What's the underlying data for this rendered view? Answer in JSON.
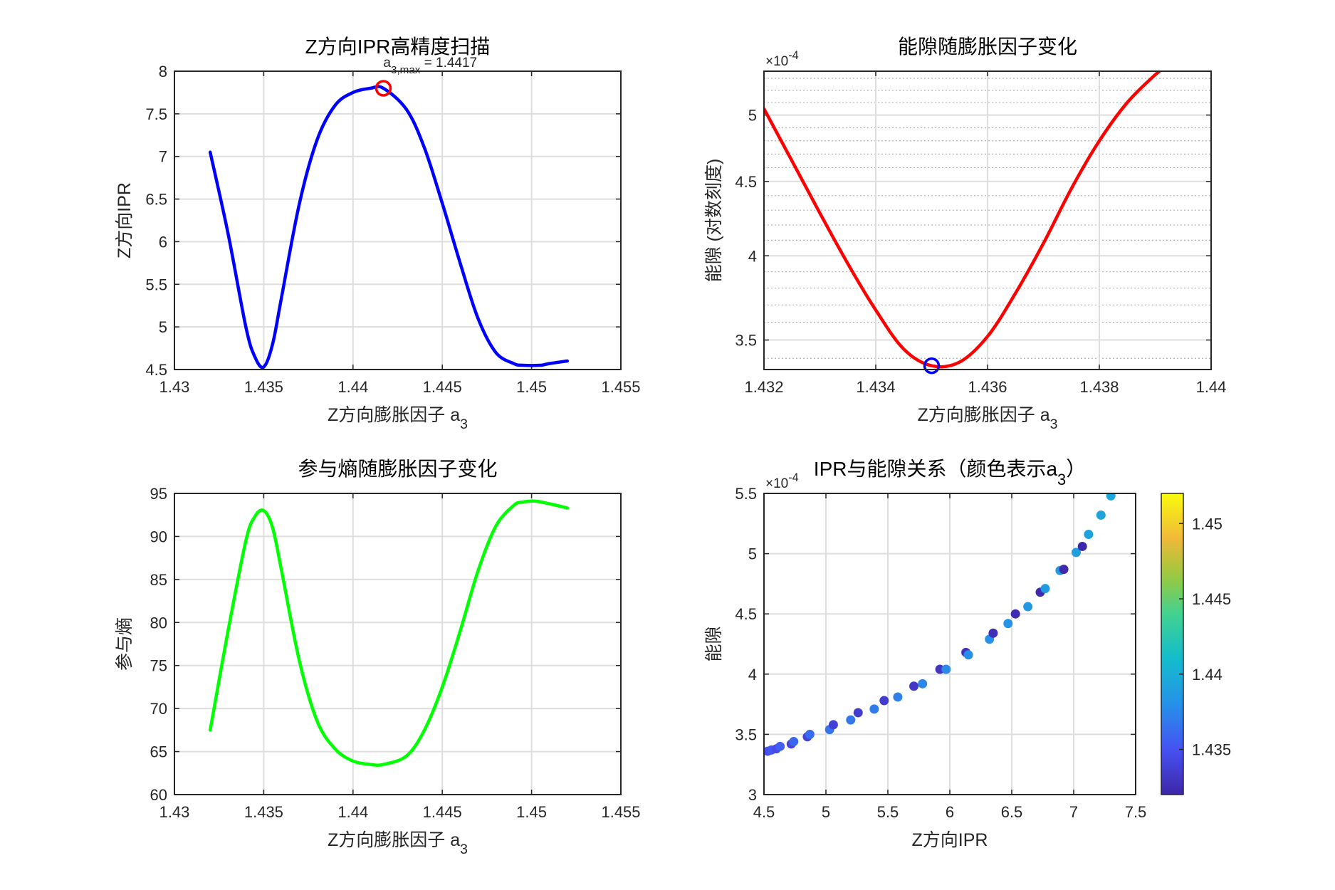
{
  "chart_data": [
    {
      "type": "line",
      "title": "Z方向IPR高精度扫描",
      "annotation": "a3,max = 1.4417",
      "xlabel": "Z方向膨胀因子 a3",
      "ylabel": "Z方向IPR",
      "xlim": [
        1.43,
        1.455
      ],
      "ylim": [
        4.5,
        8
      ],
      "xticks": [
        "1.43",
        "1.435",
        "1.44",
        "1.445",
        "1.45",
        "1.455"
      ],
      "yticks": [
        "4.5",
        "5",
        "5.5",
        "6",
        "6.5",
        "7",
        "7.5",
        "8"
      ],
      "grid": true,
      "series": [
        {
          "color": "#0000ff",
          "x": [
            1.432,
            1.433,
            1.434,
            1.4345,
            1.435,
            1.4355,
            1.436,
            1.437,
            1.438,
            1.439,
            1.44,
            1.441,
            1.4417,
            1.443,
            1.444,
            1.445,
            1.446,
            1.447,
            1.448,
            1.449,
            1.4495,
            1.4505,
            1.451,
            1.452
          ],
          "y": [
            7.05,
            6.1,
            5.0,
            4.65,
            4.53,
            4.8,
            5.35,
            6.45,
            7.2,
            7.6,
            7.75,
            7.8,
            7.8,
            7.55,
            7.1,
            6.45,
            5.75,
            5.1,
            4.7,
            4.57,
            4.55,
            4.55,
            4.57,
            4.6
          ]
        }
      ],
      "marker": {
        "x": 1.4417,
        "y": 7.8,
        "color": "#ff0000"
      }
    },
    {
      "type": "line",
      "title": "能隙随膨胀因子变化",
      "xlabel": "Z方向膨胀因子 a3",
      "ylabel": "能隙 (对数刻度)",
      "y_exponent": "×10-4",
      "y_scale": "log",
      "xlim": [
        1.432,
        1.44
      ],
      "ylim": [
        3.34,
        5.36
      ],
      "xticks": [
        "1.432",
        "1.434",
        "1.436",
        "1.438",
        "1.44"
      ],
      "yticks": [
        "3.5",
        "4",
        "4.5",
        "5"
      ],
      "grid": true,
      "series": [
        {
          "color": "#ff0000",
          "x": [
            1.432,
            1.4325,
            1.433,
            1.4335,
            1.434,
            1.4345,
            1.435,
            1.4355,
            1.436,
            1.4365,
            1.437,
            1.4375,
            1.438,
            1.4385,
            1.439,
            1.4392
          ],
          "y": [
            5.05,
            4.65,
            4.28,
            3.95,
            3.67,
            3.45,
            3.36,
            3.38,
            3.52,
            3.77,
            4.08,
            4.45,
            4.8,
            5.1,
            5.33,
            5.4
          ]
        }
      ],
      "marker": {
        "x": 1.435,
        "y": 3.36,
        "color": "#0000ff"
      }
    },
    {
      "type": "line",
      "title": "参与熵随膨胀因子变化",
      "xlabel": "Z方向膨胀因子 a3",
      "ylabel": "参与熵",
      "xlim": [
        1.43,
        1.455
      ],
      "ylim": [
        60,
        95
      ],
      "xticks": [
        "1.43",
        "1.435",
        "1.44",
        "1.445",
        "1.45",
        "1.455"
      ],
      "yticks": [
        "60",
        "65",
        "70",
        "75",
        "80",
        "85",
        "90",
        "95"
      ],
      "grid": true,
      "series": [
        {
          "color": "#00ff00",
          "x": [
            1.432,
            1.433,
            1.434,
            1.4345,
            1.435,
            1.4355,
            1.436,
            1.437,
            1.438,
            1.439,
            1.44,
            1.441,
            1.4417,
            1.443,
            1.444,
            1.445,
            1.446,
            1.447,
            1.448,
            1.449,
            1.4495,
            1.4502,
            1.451,
            1.452
          ],
          "y": [
            67.5,
            79.0,
            89.5,
            92.3,
            93.0,
            91.0,
            86.0,
            75.5,
            68.5,
            65.3,
            63.9,
            63.5,
            63.5,
            64.5,
            67.5,
            72.5,
            79.0,
            86.0,
            91.2,
            93.6,
            94.0,
            94.1,
            93.8,
            93.3
          ]
        }
      ]
    },
    {
      "type": "scatter",
      "title": "IPR与能隙关系（颜色表示a3）",
      "xlabel": "Z方向IPR",
      "ylabel": "能隙",
      "y_exponent": "×10-4",
      "xlim": [
        4.5,
        7.5
      ],
      "ylim": [
        3,
        5.5
      ],
      "xticks": [
        "4.5",
        "5",
        "5.5",
        "6",
        "6.5",
        "7",
        "7.5"
      ],
      "yticks": [
        "3",
        "3.5",
        "4",
        "4.5",
        "5",
        "5.5"
      ],
      "grid": true,
      "colorbar": {
        "min": 1.432,
        "max": 1.452,
        "ticks": [
          "1.435",
          "1.44",
          "1.445",
          "1.45"
        ],
        "tick_values": [
          1.435,
          1.44,
          1.445,
          1.45
        ]
      },
      "points": [
        {
          "x": 4.53,
          "y": 3.36,
          "c": 1.4348
        },
        {
          "x": 4.56,
          "y": 3.37,
          "c": 1.4352
        },
        {
          "x": 4.6,
          "y": 3.38,
          "c": 1.4345
        },
        {
          "x": 4.63,
          "y": 3.4,
          "c": 1.4356
        },
        {
          "x": 4.72,
          "y": 3.42,
          "c": 1.4342
        },
        {
          "x": 4.74,
          "y": 3.44,
          "c": 1.436
        },
        {
          "x": 4.85,
          "y": 3.48,
          "c": 1.434
        },
        {
          "x": 4.87,
          "y": 3.5,
          "c": 1.4362
        },
        {
          "x": 5.03,
          "y": 3.54,
          "c": 1.4365
        },
        {
          "x": 5.06,
          "y": 3.58,
          "c": 1.4338
        },
        {
          "x": 5.2,
          "y": 3.62,
          "c": 1.4368
        },
        {
          "x": 5.26,
          "y": 3.68,
          "c": 1.4336
        },
        {
          "x": 5.39,
          "y": 3.71,
          "c": 1.437
        },
        {
          "x": 5.47,
          "y": 3.78,
          "c": 1.4334
        },
        {
          "x": 5.58,
          "y": 3.81,
          "c": 1.4372
        },
        {
          "x": 5.71,
          "y": 3.9,
          "c": 1.4332
        },
        {
          "x": 5.78,
          "y": 3.92,
          "c": 1.4375
        },
        {
          "x": 5.92,
          "y": 4.04,
          "c": 1.433
        },
        {
          "x": 5.97,
          "y": 4.04,
          "c": 1.4376
        },
        {
          "x": 6.13,
          "y": 4.18,
          "c": 1.4328
        },
        {
          "x": 6.15,
          "y": 4.16,
          "c": 1.4378
        },
        {
          "x": 6.32,
          "y": 4.29,
          "c": 1.438
        },
        {
          "x": 6.35,
          "y": 4.34,
          "c": 1.4326
        },
        {
          "x": 6.47,
          "y": 4.42,
          "c": 1.4382
        },
        {
          "x": 6.53,
          "y": 4.5,
          "c": 1.4324
        },
        {
          "x": 6.63,
          "y": 4.56,
          "c": 1.4384
        },
        {
          "x": 6.73,
          "y": 4.68,
          "c": 1.4323
        },
        {
          "x": 6.77,
          "y": 4.71,
          "c": 1.4386
        },
        {
          "x": 6.89,
          "y": 4.86,
          "c": 1.4388
        },
        {
          "x": 6.92,
          "y": 4.87,
          "c": 1.4322
        },
        {
          "x": 7.02,
          "y": 5.01,
          "c": 1.439
        },
        {
          "x": 7.07,
          "y": 5.06,
          "c": 1.4321
        },
        {
          "x": 7.12,
          "y": 5.16,
          "c": 1.4392
        },
        {
          "x": 7.22,
          "y": 5.32,
          "c": 1.4394
        },
        {
          "x": 7.3,
          "y": 5.48,
          "c": 1.4396
        }
      ]
    }
  ]
}
